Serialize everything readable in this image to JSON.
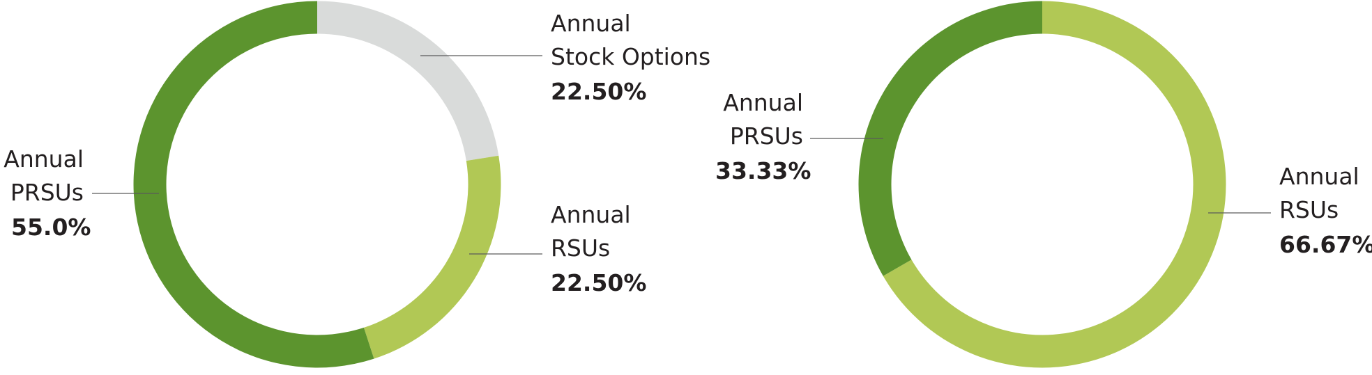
{
  "chart_data": [
    {
      "type": "pie",
      "donut": true,
      "slices": [
        {
          "label": [
            "Annual",
            "Stock Options"
          ],
          "value_text": "22.50%",
          "value": 22.5,
          "color": "#d9dbda"
        },
        {
          "label": [
            "Annual",
            "RSUs"
          ],
          "value_text": "22.50%",
          "value": 22.5,
          "color": "#b1c855"
        },
        {
          "label": [
            "Annual",
            "PRSUs"
          ],
          "value_text": "55.0%",
          "value": 55.0,
          "color": "#5c942e"
        }
      ]
    },
    {
      "type": "pie",
      "donut": true,
      "slices": [
        {
          "label": [
            "Annual",
            "RSUs"
          ],
          "value_text": "66.67%",
          "value": 66.67,
          "color": "#b1c855"
        },
        {
          "label": [
            "Annual",
            "PRSUs"
          ],
          "value_text": "33.33%",
          "value": 33.33,
          "color": "#5c942e"
        }
      ]
    }
  ]
}
